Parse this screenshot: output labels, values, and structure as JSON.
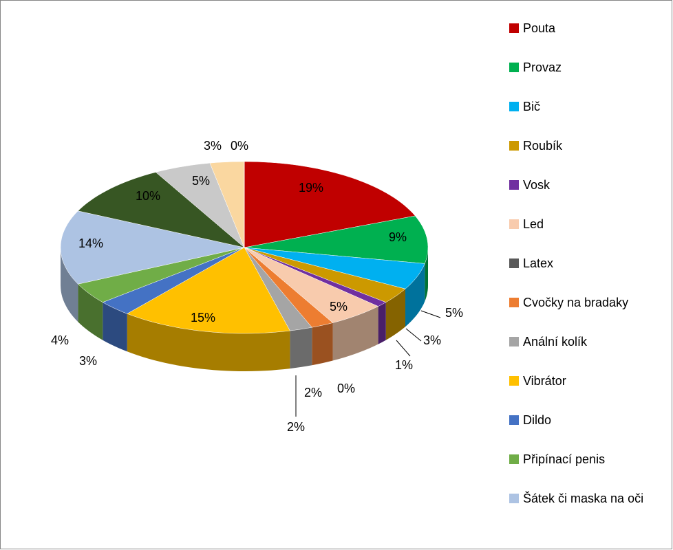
{
  "chart_data": {
    "type": "pie3d",
    "categories": [
      "Pouta",
      "Provaz",
      "Bič",
      "Roubík",
      "Vosk",
      "Led",
      "Latex",
      "Cvočky na bradaky",
      "Anální kolík",
      "Vibrátor",
      "Dildo",
      "Připínací penis",
      "Šátek či maska na oči",
      null,
      null,
      null,
      null
    ],
    "values": [
      19,
      9,
      5,
      3,
      1,
      5,
      0,
      2,
      2,
      15,
      3,
      4,
      14,
      10,
      5,
      3,
      0
    ],
    "value_labels": [
      "19%",
      "9%",
      "5%",
      "3%",
      "1%",
      "5%",
      "0%",
      "2%",
      "2%",
      "15%",
      "3%",
      "4%",
      "14%",
      "10%",
      "5%",
      "3%",
      "0%"
    ],
    "colors": [
      "#c00000",
      "#00b050",
      "#00b0f0",
      "#cc9900",
      "#7030a0",
      "#f8cbad",
      "#595959",
      "#ed7d31",
      "#a5a5a5",
      "#ffc000",
      "#4472c4",
      "#70ad47",
      "#adc3e3",
      "#375623",
      "#c9c9c9",
      "#fad7a0",
      "#8064a2"
    ],
    "legend": "right"
  }
}
